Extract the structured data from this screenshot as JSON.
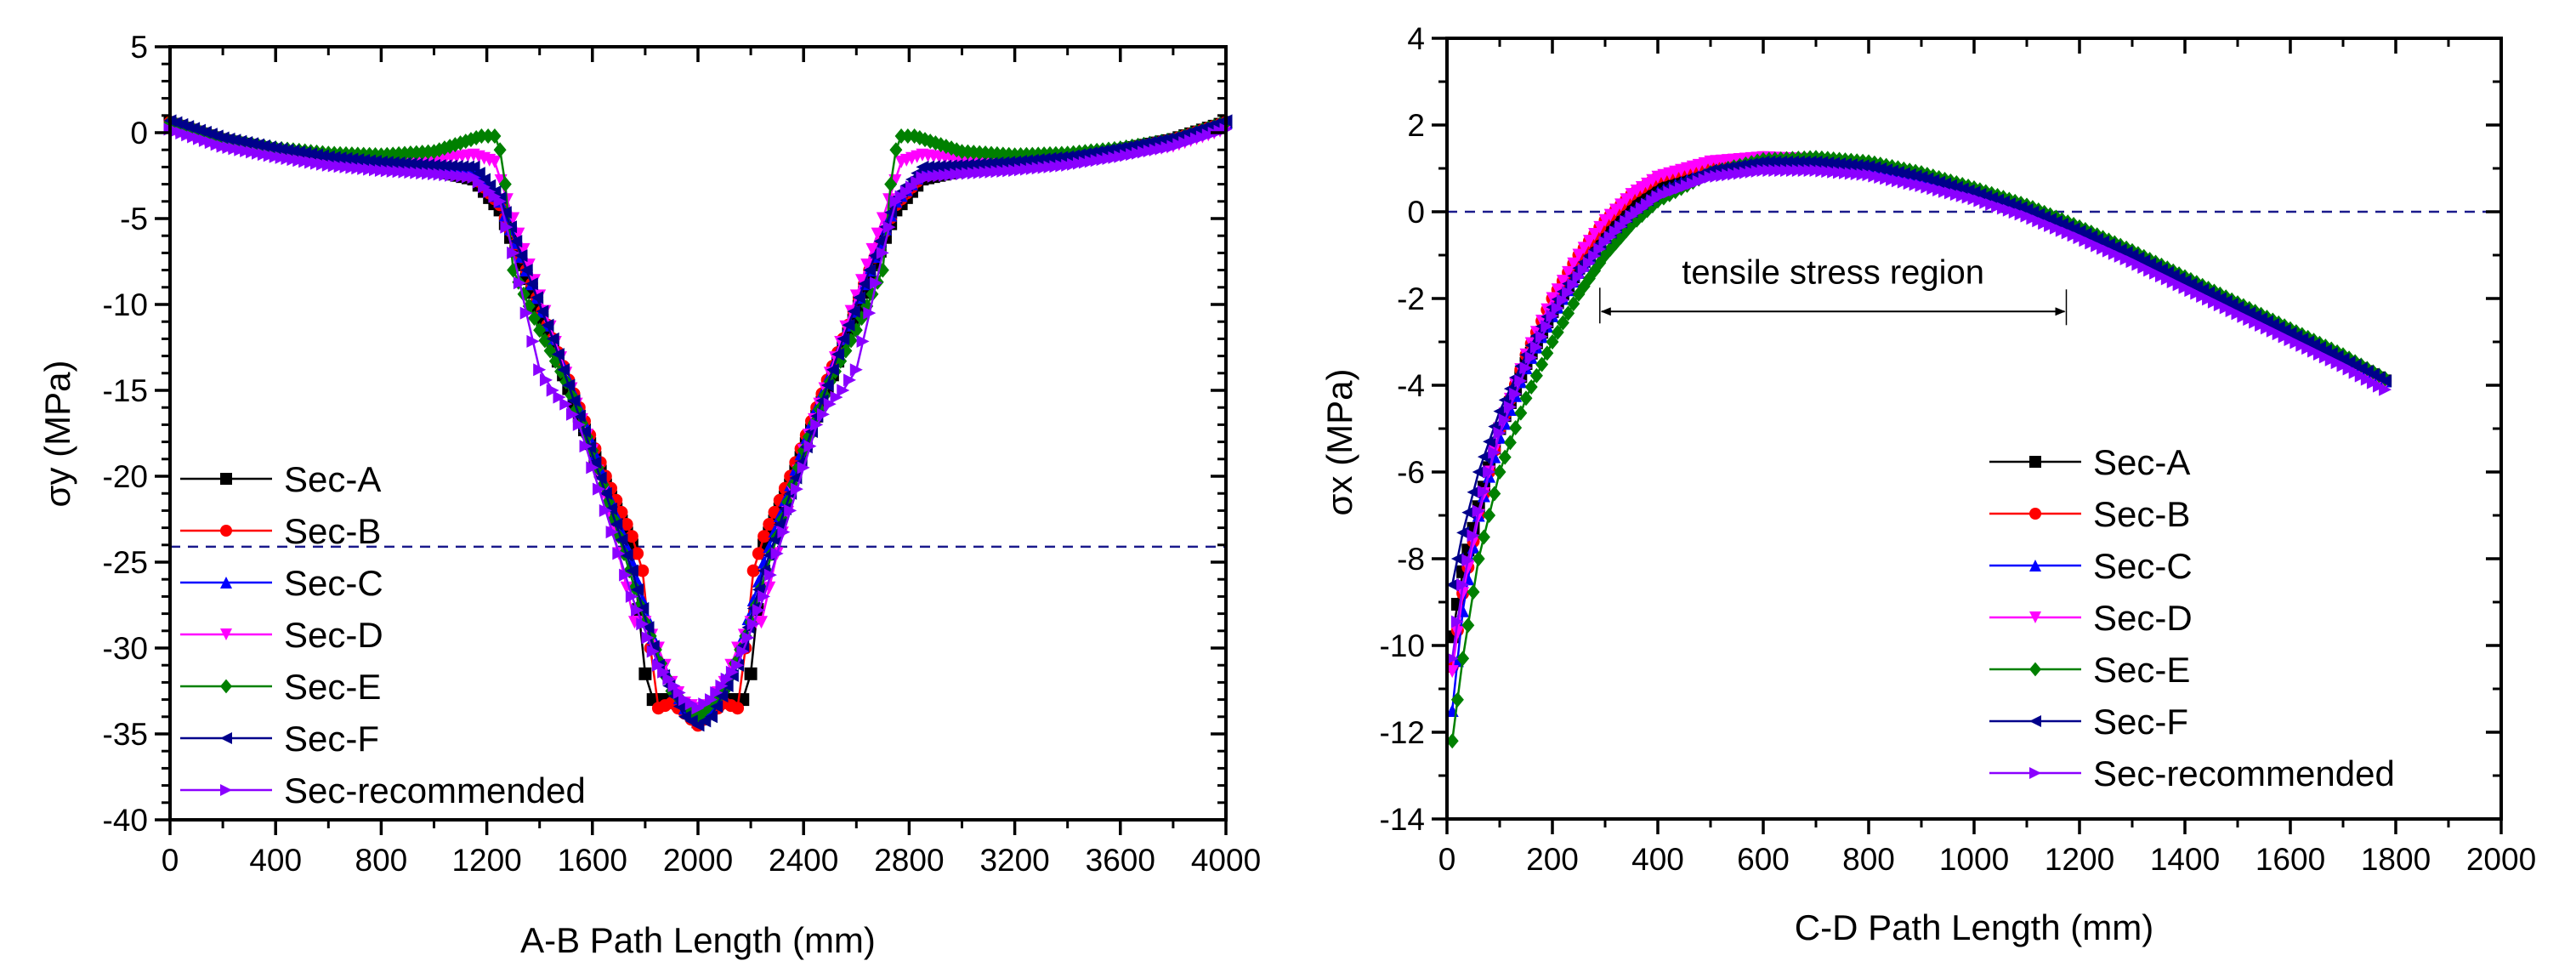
{
  "chart_data": [
    {
      "id": "left",
      "type": "line",
      "title": "",
      "xlabel": "A-B Path Length (mm)",
      "ylabel": "σy (MPa)",
      "xlim": [
        0,
        4000
      ],
      "ylim": [
        -40,
        5
      ],
      "xticks": [
        0,
        400,
        800,
        1200,
        1600,
        2000,
        2400,
        2800,
        3200,
        3600,
        4000
      ],
      "yticks": [
        5,
        0,
        -5,
        -10,
        -15,
        -20,
        -25,
        -30,
        -35,
        -40
      ],
      "grid": false,
      "legend_position": "lower-left",
      "reference_line": {
        "axis": "y",
        "value": -24.1,
        "style": "dashed",
        "color": "#1a1a8c"
      },
      "series": [
        {
          "name": "Sec-A",
          "color": "#000000",
          "marker": "square",
          "x": [
            0,
            200,
            400,
            600,
            800,
            1000,
            1150,
            1250,
            1350,
            1450,
            1550,
            1650,
            1750,
            1800,
            1830,
            1860,
            1900,
            1950,
            2000,
            2050,
            2100,
            2140,
            2170,
            2200,
            2250,
            2350,
            2450,
            2550,
            2650,
            2750,
            2850,
            3000,
            3200,
            3400,
            3600,
            3800,
            4000
          ],
          "y": [
            0.6,
            -0.4,
            -1.0,
            -1.5,
            -1.9,
            -2.2,
            -2.7,
            -4.5,
            -8.5,
            -12.5,
            -16.5,
            -20.5,
            -24.0,
            -31.5,
            -33.0,
            -33.0,
            -33.0,
            -33.5,
            -34.3,
            -33.5,
            -33.0,
            -33.0,
            -33.0,
            -31.5,
            -24.0,
            -20.5,
            -16.5,
            -12.5,
            -8.5,
            -4.5,
            -2.7,
            -2.2,
            -1.9,
            -1.5,
            -1.0,
            -0.4,
            0.6
          ]
        },
        {
          "name": "Sec-B",
          "color": "#ff0000",
          "marker": "circle",
          "x": [
            0,
            200,
            400,
            600,
            800,
            1000,
            1150,
            1250,
            1350,
            1450,
            1550,
            1650,
            1750,
            1790,
            1820,
            1850,
            1900,
            1950,
            2000,
            2050,
            2100,
            2150,
            2180,
            2210,
            2250,
            2350,
            2450,
            2550,
            2650,
            2750,
            2850,
            3000,
            3200,
            3400,
            3600,
            3800,
            4000
          ],
          "y": [
            0.6,
            -0.4,
            -1.0,
            -1.5,
            -1.9,
            -2.2,
            -2.5,
            -4.2,
            -8.0,
            -12.0,
            -16.0,
            -20.0,
            -23.5,
            -25.5,
            -30.0,
            -33.5,
            -33.2,
            -33.8,
            -34.5,
            -33.8,
            -33.2,
            -33.5,
            -30.0,
            -25.5,
            -23.5,
            -20.0,
            -16.0,
            -12.0,
            -8.0,
            -4.2,
            -2.5,
            -2.2,
            -1.9,
            -1.5,
            -1.0,
            -0.4,
            0.6
          ]
        },
        {
          "name": "Sec-C",
          "color": "#0000ff",
          "marker": "triangle-up",
          "x": [
            0,
            200,
            400,
            600,
            800,
            1000,
            1150,
            1250,
            1350,
            1450,
            1550,
            1650,
            1750,
            1850,
            1950,
            2000,
            2050,
            2150,
            2250,
            2350,
            2450,
            2550,
            2650,
            2750,
            2850,
            3000,
            3200,
            3400,
            3600,
            3800,
            4000
          ],
          "y": [
            0.6,
            -0.4,
            -1.0,
            -1.5,
            -1.8,
            -2.0,
            -2.3,
            -4.0,
            -8.0,
            -12.0,
            -16.0,
            -20.5,
            -25.0,
            -30.5,
            -33.5,
            -34.0,
            -33.5,
            -30.5,
            -25.0,
            -20.5,
            -16.0,
            -12.0,
            -8.0,
            -4.0,
            -2.3,
            -2.0,
            -1.8,
            -1.5,
            -1.0,
            -0.4,
            0.6
          ]
        },
        {
          "name": "Sec-D",
          "color": "#ff00ff",
          "marker": "triangle-down",
          "x": [
            0,
            200,
            400,
            600,
            800,
            1000,
            1150,
            1230,
            1300,
            1400,
            1500,
            1600,
            1700,
            1730,
            1760,
            1800,
            1850,
            1900,
            1950,
            2000,
            2050,
            2100,
            2150,
            2200,
            2240,
            2270,
            2300,
            2400,
            2500,
            2600,
            2700,
            2770,
            2850,
            3000,
            3200,
            3400,
            3600,
            3800,
            4000
          ],
          "y": [
            0.2,
            -0.8,
            -1.3,
            -1.6,
            -1.7,
            -1.6,
            -1.3,
            -1.7,
            -5.0,
            -9.5,
            -14.0,
            -18.5,
            -24.5,
            -26.5,
            -28.5,
            -28.5,
            -30.0,
            -32.0,
            -33.2,
            -33.5,
            -33.2,
            -32.0,
            -30.0,
            -28.5,
            -28.5,
            -26.5,
            -24.5,
            -18.5,
            -14.0,
            -9.5,
            -5.0,
            -1.7,
            -1.3,
            -1.6,
            -1.7,
            -1.6,
            -1.3,
            -0.8,
            0.2
          ]
        },
        {
          "name": "Sec-E",
          "color": "#008000",
          "marker": "diamond",
          "x": [
            0,
            200,
            400,
            600,
            800,
            1000,
            1100,
            1180,
            1230,
            1250,
            1270,
            1300,
            1400,
            1500,
            1600,
            1700,
            1800,
            1900,
            2000,
            2100,
            2200,
            2300,
            2400,
            2500,
            2600,
            2700,
            2730,
            2750,
            2770,
            2820,
            2900,
            3000,
            3200,
            3400,
            3600,
            3800,
            4000
          ],
          "y": [
            0.6,
            -0.4,
            -0.9,
            -1.2,
            -1.3,
            -1.1,
            -0.6,
            -0.2,
            -0.2,
            -1.0,
            -3.0,
            -8.0,
            -11.5,
            -14.5,
            -18.5,
            -23.5,
            -28.5,
            -32.5,
            -34.0,
            -32.5,
            -28.5,
            -23.5,
            -18.5,
            -14.5,
            -11.5,
            -8.0,
            -3.0,
            -1.0,
            -0.2,
            -0.2,
            -0.6,
            -1.1,
            -1.3,
            -1.2,
            -0.9,
            -0.4,
            0.6
          ]
        },
        {
          "name": "Sec-F",
          "color": "#00008b",
          "marker": "triangle-left",
          "x": [
            0,
            200,
            400,
            600,
            800,
            1000,
            1150,
            1250,
            1350,
            1450,
            1550,
            1650,
            1750,
            1850,
            1950,
            2000,
            2050,
            2150,
            2250,
            2350,
            2450,
            2550,
            2650,
            2750,
            2850,
            3000,
            3200,
            3400,
            3600,
            3800,
            4000
          ],
          "y": [
            0.7,
            -0.3,
            -0.9,
            -1.4,
            -1.7,
            -1.9,
            -2.0,
            -3.8,
            -8.0,
            -12.0,
            -16.5,
            -21.0,
            -25.5,
            -31.0,
            -34.0,
            -34.5,
            -34.0,
            -31.0,
            -25.5,
            -21.0,
            -16.5,
            -12.0,
            -8.0,
            -3.8,
            -2.0,
            -1.9,
            -1.7,
            -1.4,
            -0.9,
            -0.3,
            0.7
          ]
        },
        {
          "name": "Sec-recommended",
          "color": "#8b00ff",
          "marker": "triangle-right",
          "x": [
            0,
            200,
            400,
            600,
            800,
            1000,
            1150,
            1250,
            1300,
            1350,
            1400,
            1450,
            1500,
            1550,
            1600,
            1650,
            1700,
            1750,
            1850,
            1950,
            2000,
            2050,
            2150,
            2250,
            2300,
            2350,
            2400,
            2450,
            2500,
            2550,
            2600,
            2650,
            2700,
            2750,
            2850,
            3000,
            3200,
            3400,
            3600,
            3800,
            4000
          ],
          "y": [
            0.2,
            -0.8,
            -1.4,
            -1.9,
            -2.2,
            -2.4,
            -2.6,
            -4.0,
            -7.0,
            -10.5,
            -13.8,
            -15.0,
            -15.8,
            -17.0,
            -19.5,
            -22.0,
            -24.5,
            -27.0,
            -31.0,
            -33.0,
            -33.5,
            -33.0,
            -31.0,
            -27.0,
            -24.5,
            -22.0,
            -19.5,
            -17.0,
            -15.8,
            -15.0,
            -13.8,
            -10.5,
            -7.0,
            -4.0,
            -2.6,
            -2.4,
            -2.2,
            -1.9,
            -1.4,
            -0.8,
            0.2
          ]
        }
      ]
    },
    {
      "id": "right",
      "type": "line",
      "title": "",
      "xlabel": "C-D Path Length (mm)",
      "ylabel": "σx (MPa)",
      "xlim": [
        0,
        2000
      ],
      "ylim": [
        -14,
        4
      ],
      "xticks": [
        0,
        200,
        400,
        600,
        800,
        1000,
        1200,
        1400,
        1600,
        1800,
        2000
      ],
      "yticks": [
        4,
        2,
        0,
        -2,
        -4,
        -6,
        -8,
        -10,
        -12,
        -14
      ],
      "grid": false,
      "legend_position": "lower-right",
      "reference_line": {
        "axis": "y",
        "value": 0,
        "style": "dashed",
        "color": "#1a1a8c"
      },
      "annotation": {
        "text": "tensile stress region",
        "x_start": 290,
        "x_end": 1175,
        "y": -2.3,
        "style": "double-arrow"
      },
      "series": [
        {
          "name": "Sec-A",
          "color": "#000000",
          "marker": "square",
          "x": [
            10,
            30,
            60,
            100,
            150,
            200,
            250,
            300,
            350,
            400,
            500,
            600,
            700,
            800,
            900,
            1000,
            1100,
            1200,
            1300,
            1400,
            1500,
            1600,
            1700,
            1780
          ],
          "y": [
            -9.8,
            -8.3,
            -6.8,
            -5.0,
            -3.5,
            -2.3,
            -1.3,
            -0.5,
            0.1,
            0.5,
            0.95,
            1.15,
            1.15,
            1.05,
            0.8,
            0.45,
            0.05,
            -0.45,
            -1.0,
            -1.6,
            -2.2,
            -2.8,
            -3.4,
            -3.9
          ]
        },
        {
          "name": "Sec-B",
          "color": "#ff0000",
          "marker": "circle",
          "x": [
            10,
            30,
            60,
            100,
            150,
            200,
            250,
            300,
            350,
            400,
            500,
            600,
            700,
            800,
            900,
            1000,
            1100,
            1200,
            1300,
            1400,
            1500,
            1600,
            1700,
            1780
          ],
          "y": [
            -10.5,
            -8.8,
            -7.0,
            -5.0,
            -3.3,
            -2.0,
            -1.0,
            -0.2,
            0.4,
            0.8,
            1.15,
            1.25,
            1.2,
            1.05,
            0.8,
            0.45,
            0.05,
            -0.45,
            -1.0,
            -1.6,
            -2.2,
            -2.8,
            -3.4,
            -3.9
          ]
        },
        {
          "name": "Sec-C",
          "color": "#0000ff",
          "marker": "triangle-up",
          "x": [
            10,
            30,
            60,
            100,
            150,
            200,
            250,
            300,
            350,
            400,
            500,
            600,
            700,
            800,
            900,
            1000,
            1100,
            1200,
            1300,
            1400,
            1500,
            1600,
            1700,
            1780
          ],
          "y": [
            -11.5,
            -9.2,
            -7.0,
            -5.2,
            -3.6,
            -2.4,
            -1.4,
            -0.6,
            0.0,
            0.45,
            0.95,
            1.15,
            1.15,
            1.05,
            0.8,
            0.45,
            0.05,
            -0.45,
            -1.0,
            -1.6,
            -2.2,
            -2.8,
            -3.4,
            -3.9
          ]
        },
        {
          "name": "Sec-D",
          "color": "#ff00ff",
          "marker": "triangle-down",
          "x": [
            10,
            30,
            60,
            100,
            150,
            200,
            250,
            300,
            350,
            400,
            500,
            600,
            700,
            800,
            900,
            1000,
            1100,
            1200,
            1300,
            1400,
            1500,
            1600,
            1700,
            1780
          ],
          "y": [
            -10.6,
            -8.8,
            -7.0,
            -5.0,
            -3.3,
            -2.0,
            -1.0,
            -0.2,
            0.4,
            0.8,
            1.15,
            1.25,
            1.2,
            1.05,
            0.8,
            0.45,
            0.05,
            -0.45,
            -1.0,
            -1.6,
            -2.2,
            -2.8,
            -3.4,
            -3.95
          ]
        },
        {
          "name": "Sec-E",
          "color": "#008000",
          "marker": "diamond",
          "x": [
            10,
            30,
            60,
            100,
            150,
            200,
            250,
            300,
            350,
            400,
            500,
            600,
            700,
            800,
            900,
            1000,
            1100,
            1200,
            1300,
            1400,
            1500,
            1600,
            1700,
            1780
          ],
          "y": [
            -12.2,
            -10.3,
            -8.0,
            -6.0,
            -4.3,
            -3.0,
            -1.9,
            -1.0,
            -0.3,
            0.25,
            0.9,
            1.2,
            1.25,
            1.15,
            0.9,
            0.55,
            0.15,
            -0.35,
            -0.9,
            -1.5,
            -2.1,
            -2.7,
            -3.3,
            -3.85
          ]
        },
        {
          "name": "Sec-F",
          "color": "#00008b",
          "marker": "triangle-left",
          "x": [
            10,
            30,
            60,
            100,
            150,
            200,
            250,
            300,
            350,
            400,
            500,
            600,
            700,
            800,
            900,
            1000,
            1100,
            1200,
            1300,
            1400,
            1500,
            1600,
            1700,
            1780
          ],
          "y": [
            -8.6,
            -7.4,
            -6.0,
            -4.6,
            -3.3,
            -2.2,
            -1.3,
            -0.6,
            0.0,
            0.45,
            0.95,
            1.15,
            1.15,
            1.05,
            0.8,
            0.45,
            0.05,
            -0.45,
            -1.0,
            -1.6,
            -2.2,
            -2.8,
            -3.4,
            -3.9
          ]
        },
        {
          "name": "Sec-recommended",
          "color": "#8b00ff",
          "marker": "triangle-right",
          "x": [
            10,
            30,
            60,
            100,
            150,
            200,
            250,
            300,
            350,
            400,
            500,
            600,
            700,
            800,
            900,
            1000,
            1100,
            1200,
            1300,
            1400,
            1500,
            1600,
            1700,
            1780
          ],
          "y": [
            -10.3,
            -8.6,
            -6.9,
            -5.1,
            -3.6,
            -2.4,
            -1.5,
            -0.7,
            -0.1,
            0.35,
            0.8,
            0.95,
            0.95,
            0.85,
            0.6,
            0.3,
            -0.1,
            -0.6,
            -1.15,
            -1.75,
            -2.35,
            -2.95,
            -3.55,
            -4.1
          ]
        }
      ]
    }
  ]
}
